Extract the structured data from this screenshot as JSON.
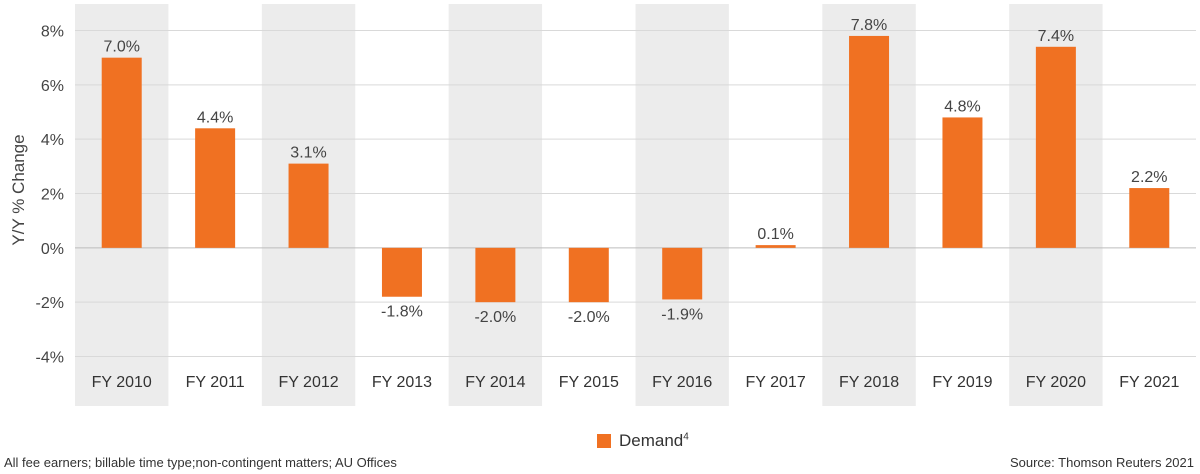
{
  "chart_data": {
    "type": "bar",
    "categories": [
      "FY 2010",
      "FY 2011",
      "FY 2012",
      "FY 2013",
      "FY 2014",
      "FY 2015",
      "FY 2016",
      "FY 2017",
      "FY 2018",
      "FY 2019",
      "FY 2020",
      "FY 2021"
    ],
    "series": [
      {
        "name": "Demand",
        "name_superscript": "4",
        "values": [
          7.0,
          4.4,
          3.1,
          -1.8,
          -2.0,
          -2.0,
          -1.9,
          0.1,
          7.8,
          4.8,
          7.4,
          2.2
        ],
        "labels": [
          "7.0%",
          "4.4%",
          "3.1%",
          "-1.8%",
          "-2.0%",
          "-2.0%",
          "-1.9%",
          "0.1%",
          "7.8%",
          "4.8%",
          "7.4%",
          "2.2%"
        ]
      }
    ],
    "ylabel": "Y/Y % Change",
    "xlabel": "",
    "ylim": [
      -4,
      8
    ],
    "yticks": [
      -4,
      -2,
      0,
      2,
      4,
      6,
      8
    ],
    "ytick_labels": [
      "-4%",
      "-2%",
      "0%",
      "2%",
      "4%",
      "6%",
      "8%"
    ],
    "shaded_categories": [
      "FY 2010",
      "FY 2012",
      "FY 2014",
      "FY 2016",
      "FY 2018",
      "FY 2020"
    ],
    "grid": true,
    "legend_position": "bottom-center",
    "colors": {
      "bar": "#f07122",
      "band": "#ececec",
      "grid": "#d9d9d9",
      "zero": "#bdbdbd"
    }
  },
  "footnote": "All fee earners; billable time type;non-contingent matters; AU Offices",
  "source": "Source: Thomson Reuters 2021"
}
